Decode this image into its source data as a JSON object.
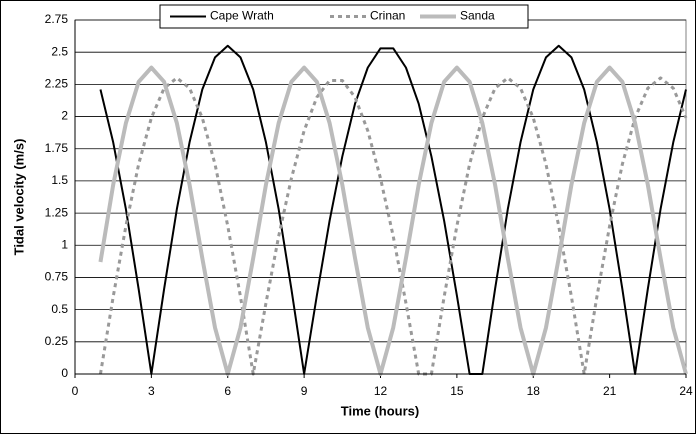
{
  "chart_data": {
    "type": "line",
    "xlabel": "Time (hours)",
    "ylabel": "Tidal velocity (m/s)",
    "x": [
      1,
      1.5,
      2,
      2.5,
      3,
      3.5,
      4,
      4.5,
      5,
      5.5,
      6,
      6.5,
      7,
      7.5,
      8,
      8.5,
      9,
      9.5,
      10,
      10.5,
      11,
      11.5,
      12,
      12.5,
      13,
      13.5,
      14,
      14.5,
      15,
      15.5,
      16,
      16.5,
      17,
      17.5,
      18,
      18.5,
      19,
      19.5,
      20,
      20.5,
      21,
      21.5,
      22,
      22.5,
      23,
      23.5,
      24
    ],
    "series": [
      {
        "name": "Cape Wrath",
        "color": "#000000",
        "line_style": "solid",
        "line_width": 2,
        "values": [
          2.21,
          1.8,
          1.28,
          0.66,
          0,
          0.66,
          1.28,
          1.8,
          2.21,
          2.46,
          2.55,
          2.46,
          2.21,
          1.8,
          1.28,
          0.66,
          0,
          0.61,
          1.19,
          1.69,
          2.1,
          2.38,
          2.53,
          2.53,
          2.38,
          2.1,
          1.69,
          1.19,
          0.61,
          0,
          0,
          0.66,
          1.28,
          1.8,
          2.21,
          2.46,
          2.55,
          2.46,
          2.21,
          1.8,
          1.28,
          0.66,
          0,
          0.66,
          1.28,
          1.8,
          2.21
        ]
      },
      {
        "name": "Crinan",
        "color": "#999999",
        "line_style": "dashed",
        "line_width": 3,
        "values": [
          0,
          0.6,
          1.15,
          1.63,
          1.99,
          2.22,
          2.3,
          2.22,
          1.99,
          1.63,
          1.15,
          0.6,
          0,
          0.55,
          1.07,
          1.52,
          1.89,
          2.15,
          2.28,
          2.28,
          2.15,
          1.89,
          1.52,
          1.07,
          0.55,
          0,
          0,
          0.6,
          1.15,
          1.63,
          1.99,
          2.22,
          2.3,
          2.22,
          1.99,
          1.63,
          1.15,
          0.6,
          0,
          0.6,
          1.15,
          1.63,
          1.99,
          2.22,
          2.3,
          2.22,
          1.99
        ]
      },
      {
        "name": "Sanda",
        "color": "#bbbbbb",
        "line_style": "solid",
        "line_width": 4,
        "values": [
          0.87,
          1.47,
          1.95,
          2.27,
          2.38,
          2.27,
          1.95,
          1.47,
          0.9,
          0.36,
          0,
          0.36,
          0.9,
          1.47,
          1.95,
          2.27,
          2.38,
          2.27,
          1.95,
          1.47,
          0.9,
          0.36,
          0,
          0.36,
          0.9,
          1.47,
          1.95,
          2.27,
          2.38,
          2.27,
          1.95,
          1.47,
          0.9,
          0.36,
          0,
          0.36,
          0.9,
          1.47,
          1.95,
          2.27,
          2.38,
          2.27,
          1.95,
          1.47,
          0.9,
          0.36,
          0
        ]
      }
    ],
    "xlim": [
      0,
      24
    ],
    "xticks": [
      0,
      3,
      6,
      9,
      12,
      15,
      18,
      21,
      24
    ],
    "ylim": [
      0,
      2.75
    ],
    "yticks": [
      0,
      0.25,
      0.5,
      0.75,
      1,
      1.25,
      1.5,
      1.75,
      2,
      2.25,
      2.5,
      2.75
    ],
    "grid": true,
    "legend": "top"
  }
}
